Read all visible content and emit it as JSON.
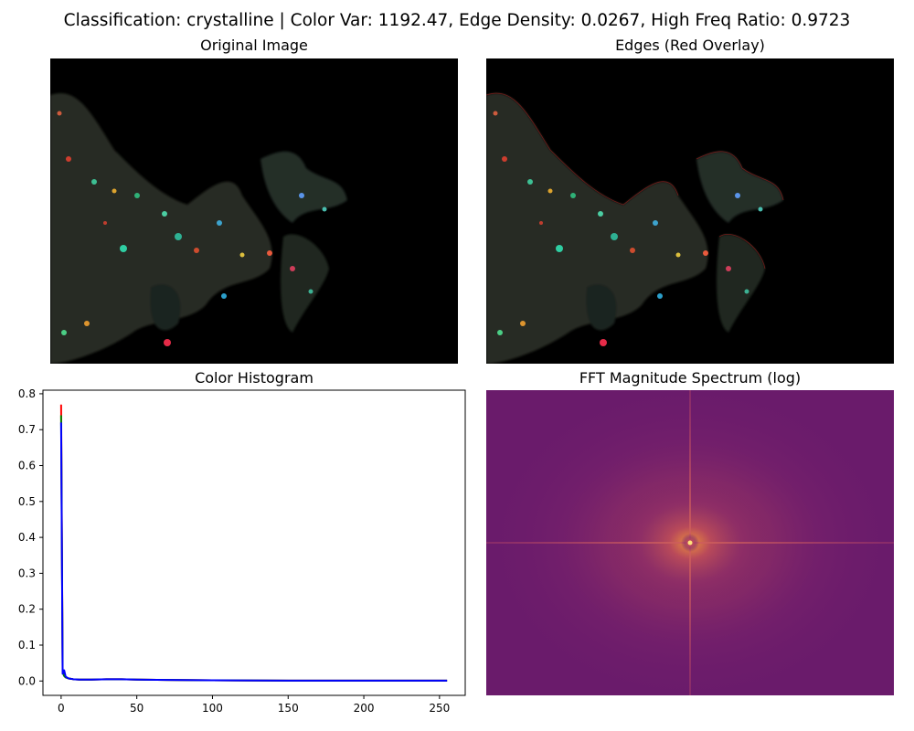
{
  "figure": {
    "suptitle": "Classification: crystalline | Color Var: 1192.47, Edge Density: 0.0267, High Freq Ratio: 0.9723"
  },
  "panels": {
    "original": {
      "title": "Original Image"
    },
    "edges": {
      "title": "Edges (Red Overlay)"
    },
    "histogram": {
      "title": "Color Histogram"
    },
    "fft": {
      "title": "FFT Magnitude Spectrum (log)"
    }
  },
  "colors": {
    "red": "#ff0000",
    "green": "#008000",
    "blue": "#0000ff",
    "image_background": "#000000",
    "fft_background": "#6a1b6b",
    "fft_center": "#fcae3c"
  },
  "chart_data": [
    {
      "type": "line",
      "title": "Color Histogram",
      "xlabel": "",
      "ylabel": "",
      "xlim": [
        -12,
        267
      ],
      "ylim": [
        -0.04,
        0.81
      ],
      "xticks": [
        0,
        50,
        100,
        150,
        200,
        250
      ],
      "yticks": [
        0.0,
        0.1,
        0.2,
        0.3,
        0.4,
        0.5,
        0.6,
        0.7,
        0.8
      ],
      "grid": false,
      "series": [
        {
          "color": "red",
          "x": [
            0,
            1,
            2,
            3,
            5,
            8,
            12,
            20,
            30,
            40,
            50,
            70,
            100,
            150,
            200,
            255
          ],
          "y": [
            0.77,
            0.03,
            0.015,
            0.01,
            0.007,
            0.005,
            0.004,
            0.004,
            0.005,
            0.005,
            0.004,
            0.003,
            0.002,
            0.001,
            0.001,
            0.001
          ]
        },
        {
          "color": "green",
          "x": [
            0,
            1,
            2,
            3,
            5,
            8,
            12,
            20,
            30,
            40,
            50,
            70,
            100,
            150,
            200,
            255
          ],
          "y": [
            0.74,
            0.025,
            0.014,
            0.01,
            0.007,
            0.005,
            0.004,
            0.004,
            0.005,
            0.005,
            0.004,
            0.003,
            0.002,
            0.001,
            0.001,
            0.001
          ]
        },
        {
          "color": "blue",
          "x": [
            0,
            1,
            2,
            3,
            5,
            8,
            12,
            20,
            30,
            40,
            50,
            70,
            100,
            150,
            200,
            255
          ],
          "y": [
            0.72,
            0.02,
            0.03,
            0.012,
            0.007,
            0.005,
            0.004,
            0.004,
            0.005,
            0.005,
            0.004,
            0.003,
            0.002,
            0.001,
            0.001,
            0.001
          ]
        }
      ]
    }
  ]
}
